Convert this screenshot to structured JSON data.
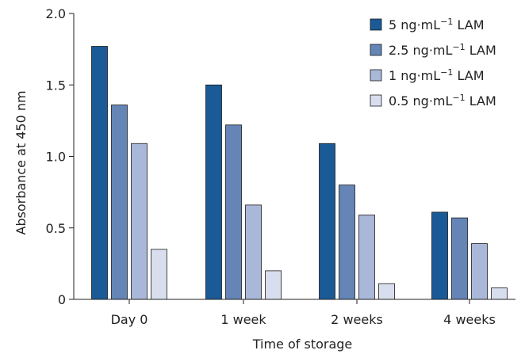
{
  "chart_data": {
    "type": "bar",
    "title": "",
    "xlabel": "Time of storage",
    "ylabel": "Absorbance at 450 nm",
    "categories": [
      "Day 0",
      "1 week",
      "2 weeks",
      "4 weeks"
    ],
    "ylim": [
      0,
      2.0
    ],
    "yticks": [
      0,
      0.5,
      1.0,
      1.5,
      2.0
    ],
    "ytick_labels": [
      "0",
      "0.5",
      "1.0",
      "1.5",
      "2.0"
    ],
    "grid": false,
    "legend_position": "top-right",
    "series": [
      {
        "name": "5 ng·mL⁻¹ LAM",
        "label_main": "5 ng·mL",
        "label_sup": "−1",
        "label_tail": " LAM",
        "color": "#1a5a96",
        "values": [
          1.77,
          1.5,
          1.09,
          0.61
        ]
      },
      {
        "name": "2.5 ng·mL⁻¹ LAM",
        "label_main": "2.5 ng·mL",
        "label_sup": "−1",
        "label_tail": " LAM",
        "color": "#6485b6",
        "values": [
          1.36,
          1.22,
          0.8,
          0.57
        ]
      },
      {
        "name": "1 ng·mL⁻¹ LAM",
        "label_main": "1 ng·mL",
        "label_sup": "−1",
        "label_tail": " LAM",
        "color": "#a9b7d9",
        "values": [
          1.09,
          0.66,
          0.59,
          0.39
        ]
      },
      {
        "name": "0.5 ng·mL⁻¹ LAM",
        "label_main": "0.5 ng·mL",
        "label_sup": "−1",
        "label_tail": " LAM",
        "color": "#d9deee",
        "values": [
          0.35,
          0.2,
          0.11,
          0.08
        ]
      }
    ]
  }
}
